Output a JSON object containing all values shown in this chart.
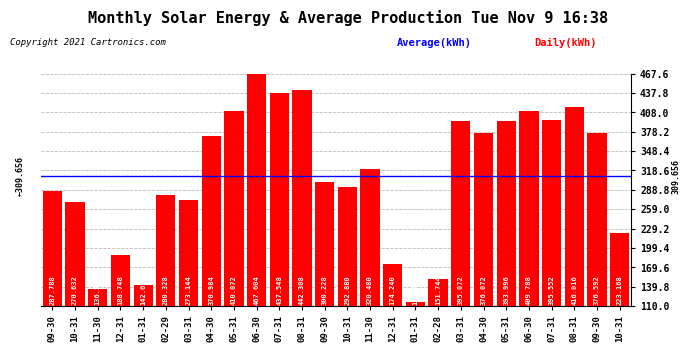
{
  "title": "Monthly Solar Energy & Average Production Tue Nov 9 16:38",
  "copyright": "Copyright 2021 Cartronics.com",
  "legend_avg": "Average(kWh)",
  "legend_daily": "Daily(kWh)",
  "categories": [
    "09-30",
    "10-31",
    "11-30",
    "12-31",
    "01-31",
    "02-29",
    "03-31",
    "04-30",
    "05-31",
    "06-30",
    "07-31",
    "08-31",
    "09-30",
    "10-31",
    "11-30",
    "12-31",
    "01-31",
    "02-28",
    "03-31",
    "04-30",
    "05-31",
    "06-30",
    "07-31",
    "08-31",
    "09-30",
    "10-31"
  ],
  "values": [
    287.788,
    270.632,
    136.384,
    188.748,
    142.692,
    280.328,
    273.144,
    370.984,
    410.072,
    467.604,
    437.548,
    442.308,
    300.228,
    292.88,
    320.48,
    174.24,
    116.984,
    151.744,
    395.072,
    376.072,
    393.996,
    409.788,
    395.552,
    416.016,
    376.592,
    223.168
  ],
  "average": 309.656,
  "bar_color": "#ff0000",
  "avg_line_color": "#0000ff",
  "avg_label_text": "309.656",
  "grid_color": "#bbbbbb",
  "grid_style": "--",
  "bg_color": "#ffffff",
  "title_color": "#000000",
  "title_fontsize": 11,
  "bar_text_color": "#ffffff",
  "bar_text_fontsize": 5.0,
  "ytick_right_labels": [
    110.0,
    139.8,
    169.6,
    199.4,
    229.2,
    259.0,
    288.8,
    318.6,
    348.4,
    378.2,
    408.0,
    437.8,
    467.6
  ],
  "ylim_min": 110.0,
  "ylim_max": 467.6
}
